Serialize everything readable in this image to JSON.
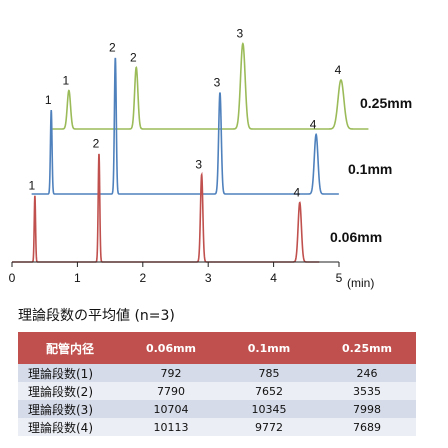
{
  "chart_data": {
    "type": "line",
    "xlabel": "(min)",
    "xlim": [
      0,
      5
    ],
    "x_ticks": [
      0,
      1,
      2,
      3,
      4,
      5
    ],
    "grid": false,
    "series": [
      {
        "name": "0.25mm",
        "color": "#9bbb59",
        "peaks": [
          {
            "label": "1",
            "t": 0.87,
            "height": 0.55,
            "width": 0.025
          },
          {
            "label": "2",
            "t": 1.9,
            "height": 0.88,
            "width": 0.025
          },
          {
            "label": "3",
            "t": 3.53,
            "height": 1.22,
            "width": 0.035
          },
          {
            "label": "4",
            "t": 5.03,
            "height": 0.7,
            "width": 0.045
          }
        ]
      },
      {
        "name": "0.1mm",
        "color": "#4f81bd",
        "peaks": [
          {
            "label": "1",
            "t": 0.6,
            "height": 1.2,
            "width": 0.012
          },
          {
            "label": "2",
            "t": 1.58,
            "height": 1.95,
            "width": 0.014
          },
          {
            "label": "3",
            "t": 3.18,
            "height": 1.45,
            "width": 0.02
          },
          {
            "label": "4",
            "t": 4.65,
            "height": 0.85,
            "width": 0.028
          }
        ]
      },
      {
        "name": "0.06mm",
        "color": "#c0504d",
        "peaks": [
          {
            "label": "1",
            "t": 0.35,
            "height": 0.95,
            "width": 0.01
          },
          {
            "label": "2",
            "t": 1.33,
            "height": 1.55,
            "width": 0.012
          },
          {
            "label": "3",
            "t": 2.9,
            "height": 1.25,
            "width": 0.018
          },
          {
            "label": "4",
            "t": 4.4,
            "height": 0.85,
            "width": 0.025
          }
        ]
      }
    ]
  },
  "table": {
    "title": "理論段数の平均値 (n=3)",
    "headers": [
      "配管内径",
      "0.06mm",
      "0.1mm",
      "0.25mm"
    ],
    "rows": [
      [
        "理論段数(1)",
        "792",
        "785",
        "246"
      ],
      [
        "理論段数(2)",
        "7790",
        "7652",
        "3535"
      ],
      [
        "理論段数(3)",
        "10704",
        "10345",
        "7998"
      ],
      [
        "理論段数(4)",
        "10113",
        "9772",
        "7689"
      ]
    ]
  }
}
